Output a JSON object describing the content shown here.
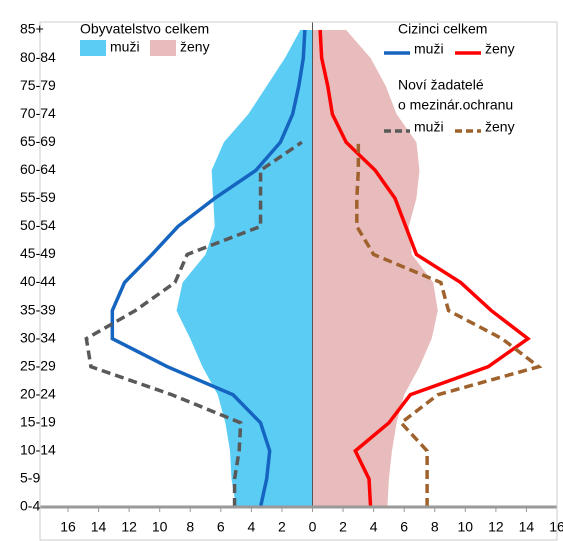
{
  "chart_data": {
    "type": "pyramid",
    "categories": [
      "0-4",
      "5-9",
      "10-14",
      "15-19",
      "20-24",
      "25-29",
      "30-34",
      "35-39",
      "40-44",
      "45-49",
      "50-54",
      "55-59",
      "60-64",
      "65-69",
      "70-74",
      "75-79",
      "80-84",
      "85+"
    ],
    "series": [
      {
        "name": "muži",
        "side": "left",
        "kind": "area",
        "color": "#5bcdf5",
        "values": [
          5.0,
          5.3,
          5.4,
          5.7,
          6.2,
          7.2,
          8.0,
          8.9,
          8.5,
          7.0,
          6.4,
          6.5,
          6.6,
          5.8,
          4.2,
          3.0,
          1.8,
          0.8
        ]
      },
      {
        "name": "ženy",
        "side": "right",
        "kind": "area",
        "color": "#e8bcbc",
        "values": [
          4.9,
          5.0,
          5.2,
          5.5,
          6.0,
          7.0,
          7.8,
          8.2,
          7.9,
          6.5,
          6.3,
          6.8,
          7.0,
          6.8,
          5.5,
          4.8,
          3.8,
          2.2
        ]
      },
      {
        "name": "muži",
        "side": "left",
        "kind": "line",
        "color": "#1565c0",
        "values": [
          3.4,
          3.0,
          2.8,
          3.4,
          5.2,
          9.5,
          13.1,
          13.1,
          12.3,
          10.5,
          8.8,
          6.4,
          3.7,
          2.1,
          1.3,
          0.9,
          0.6,
          0.5
        ]
      },
      {
        "name": "ženy",
        "side": "right",
        "kind": "line",
        "color": "#ff0000",
        "values": [
          3.8,
          3.7,
          2.8,
          5.0,
          6.4,
          11.5,
          14.1,
          11.7,
          9.7,
          6.8,
          6.1,
          5.4,
          4.1,
          2.2,
          1.3,
          1.0,
          0.6,
          0.5
        ]
      },
      {
        "name": "muži",
        "side": "left",
        "kind": "dashed",
        "color": "#595959",
        "values": [
          5.1,
          5.1,
          4.8,
          4.7,
          9.2,
          14.5,
          14.8,
          11.6,
          9.0,
          8.2,
          3.4,
          3.4,
          3.4,
          0.7,
          null,
          null,
          null,
          null
        ]
      },
      {
        "name": "ženy",
        "side": "right",
        "kind": "dashed",
        "color": "#a0622d",
        "values": [
          7.5,
          7.5,
          7.5,
          5.8,
          8.2,
          14.8,
          12.4,
          8.9,
          8.4,
          4.0,
          2.9,
          2.9,
          3.0,
          3.0,
          null,
          null,
          null,
          null
        ]
      }
    ],
    "legend_groups": [
      {
        "title": [
          "Obyvatelstvo celkem"
        ],
        "series": [
          0,
          1
        ]
      },
      {
        "title": [
          "Cizinci celkem"
        ],
        "series": [
          2,
          3
        ]
      },
      {
        "title": [
          "Noví žadatelé",
          "o mezinár.ochranu"
        ],
        "series": [
          4,
          5
        ]
      }
    ],
    "xlim": [
      -16,
      16
    ],
    "xticks": [
      {
        "value": -16,
        "label": "16"
      },
      {
        "value": -14,
        "label": "14"
      },
      {
        "value": -12,
        "label": "12"
      },
      {
        "value": -10,
        "label": "10"
      },
      {
        "value": -8,
        "label": "8"
      },
      {
        "value": -6,
        "label": "6"
      },
      {
        "value": -4,
        "label": "4"
      },
      {
        "value": -2,
        "label": "2"
      },
      0,
      2,
      4,
      6,
      8,
      10,
      12,
      14,
      16
    ]
  }
}
